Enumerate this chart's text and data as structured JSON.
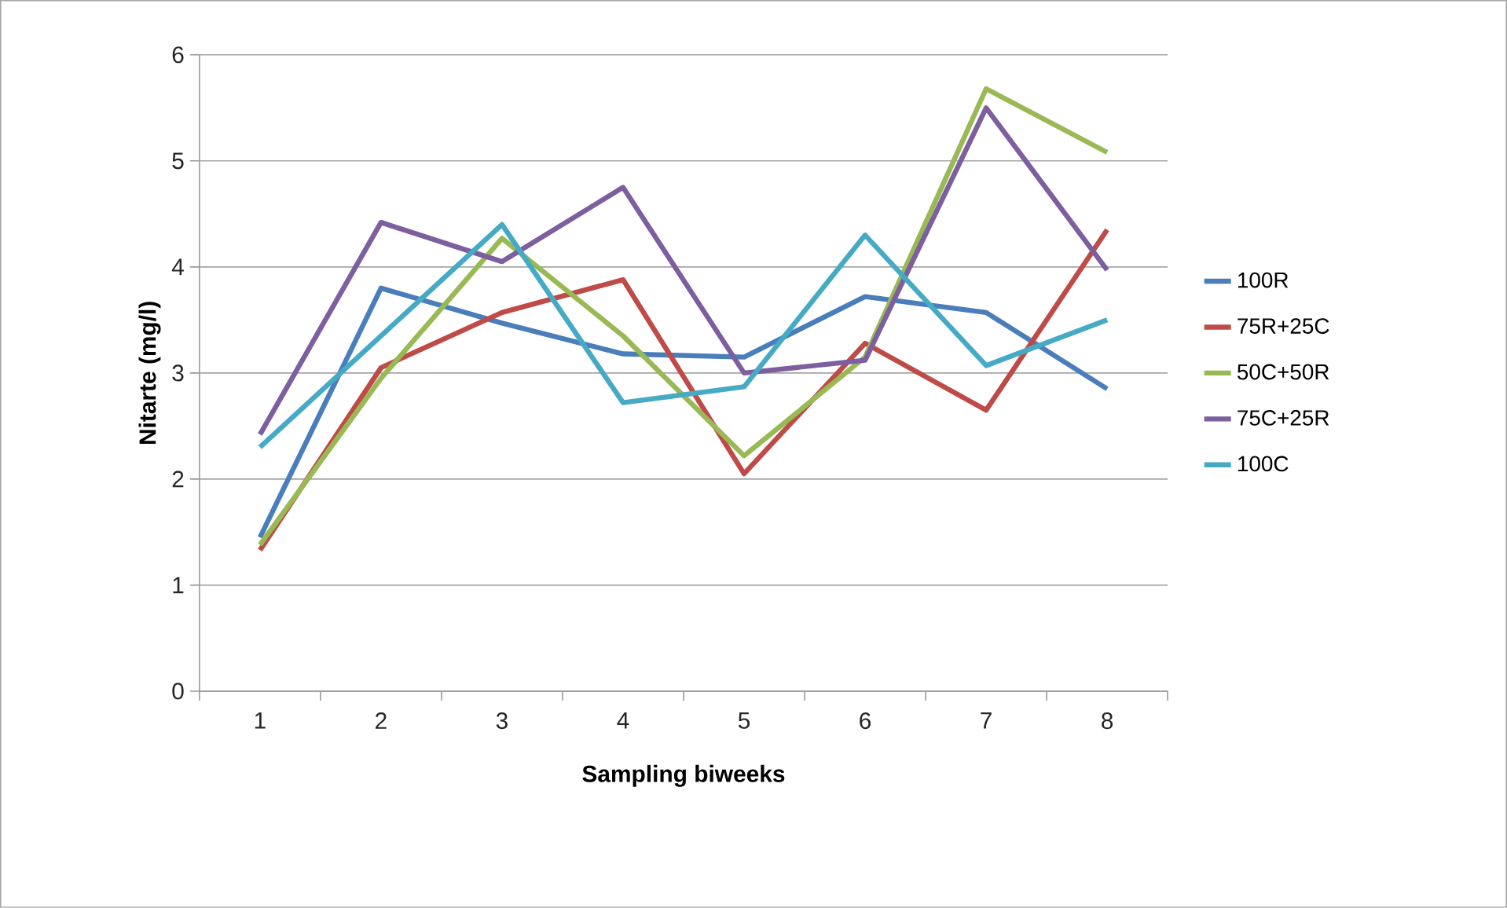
{
  "chart_data": {
    "type": "line",
    "xlabel": "Sampling biweeks",
    "ylabel": "Nitarte (mg/l)",
    "categories": [
      "1",
      "2",
      "3",
      "4",
      "5",
      "6",
      "7",
      "8"
    ],
    "series": [
      {
        "name": "100R",
        "color": "#4a7ebb",
        "values": [
          1.45,
          3.8,
          3.47,
          3.18,
          3.15,
          3.72,
          3.57,
          2.85
        ]
      },
      {
        "name": "75R+25C",
        "color": "#be4b48",
        "values": [
          1.33,
          3.05,
          3.57,
          3.88,
          2.05,
          3.28,
          2.65,
          4.35
        ]
      },
      {
        "name": "50C+50R",
        "color": "#98b954",
        "values": [
          1.38,
          2.95,
          4.27,
          3.35,
          2.22,
          3.15,
          5.68,
          5.08
        ]
      },
      {
        "name": "75C+25R",
        "color": "#7d5fa0",
        "values": [
          2.42,
          4.42,
          4.05,
          4.75,
          3.0,
          3.12,
          5.5,
          3.97
        ]
      },
      {
        "name": "100C",
        "color": "#46aac5",
        "values": [
          2.3,
          3.35,
          4.4,
          2.72,
          2.87,
          4.3,
          3.07,
          3.5
        ]
      }
    ],
    "ylim": [
      0,
      6
    ],
    "yticks": [
      0,
      1,
      2,
      3,
      4,
      5,
      6
    ],
    "grid": "y",
    "legend": "right",
    "marker": "none",
    "line_style": "solid"
  }
}
